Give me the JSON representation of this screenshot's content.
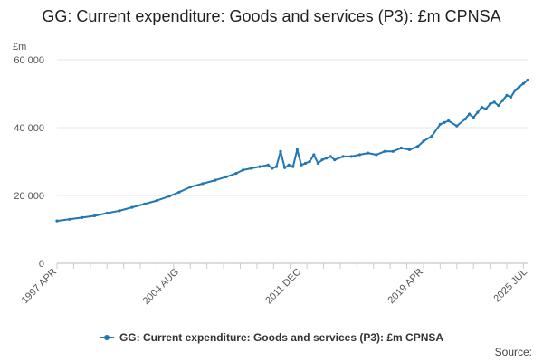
{
  "chart_data": {
    "type": "line",
    "title": "GG: Current expenditure: Goods and services (P3): £m CPNSA",
    "ylabel": "£m",
    "ylim": [
      0,
      60000
    ],
    "yticks": [
      0,
      20000,
      40000,
      60000
    ],
    "ytick_labels": [
      "0",
      "20 000",
      "40 000",
      "60 000"
    ],
    "xlim": [
      "1997-04",
      "2025-07"
    ],
    "xticks": [
      "1997-04",
      "2004-08",
      "2011-12",
      "2019-04",
      "2025-07"
    ],
    "xtick_labels": [
      "1997 APR",
      "2004 AUG",
      "2011 DEC",
      "2019 APR",
      "2025 JUL"
    ],
    "grid": "horizontal",
    "legend_position": "bottom",
    "color": "#1f77b4",
    "series": [
      {
        "name": "GG: Current expenditure: Goods and services (P3): £m CPNSA",
        "x": [
          "1997-04",
          "1998-01",
          "1998-10",
          "1999-07",
          "2000-04",
          "2001-01",
          "2001-10",
          "2002-07",
          "2003-04",
          "2004-01",
          "2004-08",
          "2005-04",
          "2006-01",
          "2006-10",
          "2007-06",
          "2008-01",
          "2008-06",
          "2008-12",
          "2009-06",
          "2009-12",
          "2010-03",
          "2010-06",
          "2010-09",
          "2010-12",
          "2011-03",
          "2011-06",
          "2011-09",
          "2011-12",
          "2012-03",
          "2012-06",
          "2012-09",
          "2012-12",
          "2013-03",
          "2013-06",
          "2013-09",
          "2013-12",
          "2014-06",
          "2014-12",
          "2015-06",
          "2015-12",
          "2016-06",
          "2016-12",
          "2017-06",
          "2017-12",
          "2018-06",
          "2018-12",
          "2019-04",
          "2019-10",
          "2020-04",
          "2020-07",
          "2020-10",
          "2021-04",
          "2021-10",
          "2022-01",
          "2022-04",
          "2022-07",
          "2022-10",
          "2023-01",
          "2023-04",
          "2023-07",
          "2023-10",
          "2024-01",
          "2024-04",
          "2024-07",
          "2024-10",
          "2025-01",
          "2025-04",
          "2025-07"
        ],
        "values": [
          12500,
          13000,
          13500,
          14000,
          14800,
          15500,
          16500,
          17500,
          18500,
          19800,
          21000,
          22500,
          23500,
          24500,
          25500,
          26500,
          27500,
          28000,
          28500,
          29000,
          28000,
          28500,
          33000,
          28200,
          29000,
          28500,
          33500,
          29000,
          29500,
          30000,
          32000,
          29500,
          30500,
          31000,
          31500,
          30500,
          31500,
          31500,
          32000,
          32500,
          32000,
          33000,
          33000,
          34000,
          33500,
          34500,
          36000,
          37500,
          41000,
          41500,
          42000,
          40500,
          42500,
          44000,
          43000,
          44500,
          46000,
          45500,
          47000,
          47500,
          46500,
          48000,
          49500,
          49000,
          51000,
          52000,
          53000,
          54000
        ]
      }
    ],
    "source_label": "Source:"
  }
}
